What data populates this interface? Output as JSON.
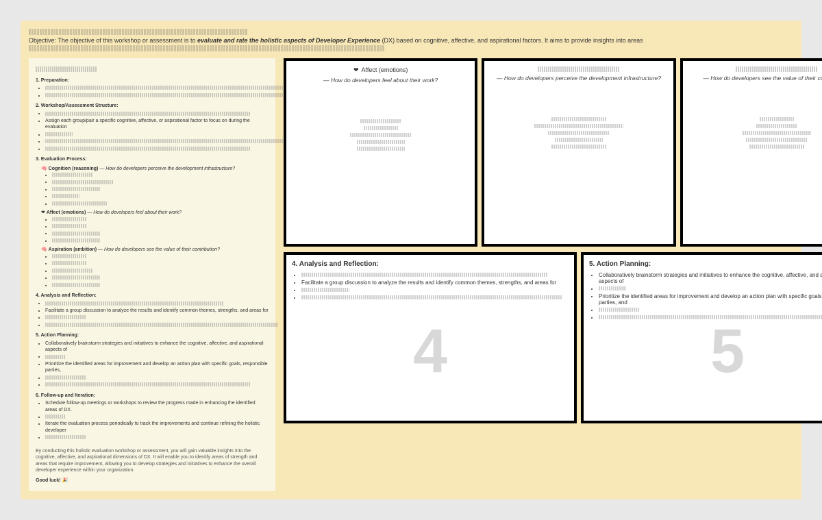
{
  "colors": {
    "page_bg": "#e8e8e8",
    "frame_bg": "#f8e8b8",
    "left_panel_bg": "#faf6e4",
    "card_bg": "#ffffff",
    "card_border": "#000000",
    "big_num": "#d8d8d8",
    "text": "#333333"
  },
  "header": {
    "objective_prefix": "Objective: The objective of this workshop or assessment is to ",
    "objective_bold": "evaluate and rate the holistic aspects of Developer Experience",
    "objective_suffix": " (DX) based on cognitive, affective, and aspirational factors. It aims to provide insights into areas"
  },
  "left": {
    "title_placeholder": "XXXXXXXXXXXXXXXX",
    "steps": [
      {
        "num": "1",
        "title": "Preparation:",
        "bullets_obscured": [
          380,
          360
        ]
      },
      {
        "num": "2",
        "title": "Workshop/Assessment Structure:",
        "bullets": [
          {
            "obscured": 300
          },
          {
            "text": "Assign each group/pair a specific cognitive, affective, or aspirational factor to focus on during the evaluation"
          },
          {
            "obscured": 40
          },
          {
            "obscured": 380
          },
          {
            "obscured": 300
          }
        ]
      },
      {
        "num": "3",
        "title": "Evaluation Process:",
        "categories": [
          {
            "label": "Cognition (reasoning)",
            "q": "How do developers perceive the development infrastructure?",
            "aspects_obscured": [
              60,
              90,
              70,
              40,
              80
            ]
          },
          {
            "label": "Affect (emotions)",
            "icon": "heart",
            "q": "How do developers feel about their work?",
            "aspects_obscured": [
              50,
              50,
              70,
              70
            ]
          },
          {
            "label": "Aspiration (ambition)",
            "q": "How do developers see the value of their contribution?",
            "aspects_obscured": [
              50,
              50,
              60,
              70,
              70
            ]
          }
        ]
      },
      {
        "num": "4",
        "title": "Analysis and Reflection:",
        "bullets": [
          {
            "obscured": 260
          },
          {
            "text": "Facilitate a group discussion to analyze the results and identify common themes, strengths, and areas for"
          },
          {
            "obscured": 60
          },
          {
            "obscured": 340
          }
        ]
      },
      {
        "num": "5",
        "title": "Action Planning:",
        "bullets": [
          {
            "text": "Collaboratively brainstorm strategies and initiatives to enhance the cognitive, affective, and aspirational aspects of"
          },
          {
            "obscured": 30
          },
          {
            "text": "Prioritize the identified areas for improvement and develop an action plan with specific goals, responsible parties,"
          },
          {
            "obscured": 60
          },
          {
            "obscured": 300
          }
        ]
      },
      {
        "num": "6",
        "title": "Follow-up and Iteration:",
        "bullets": [
          {
            "text": "Schedule follow-up meetings or workshops to review the progress made in enhancing the identified areas of DX."
          },
          {
            "obscured": 30
          },
          {
            "text": "Iterate the evaluation process periodically to track the improvements and continue refining the holistic developer"
          },
          {
            "obscured": 60
          }
        ]
      }
    ],
    "footnote": "By conducting this holistic evaluation workshop or assessment, you will gain valuable insights into the cognitive, affective, and aspirational dimensions of DX. It will enable you to identify areas of strength and areas that require improvement, allowing you to develop strategies and initiatives to enhance the overall developer experience within your organization.",
    "goodluck": "Good luck! 🎉"
  },
  "cards_top": [
    {
      "icon": "heart",
      "title": "Affect (emotions)",
      "subtitle": "How do developers feel about their work?",
      "aspects_obscured": [
        60,
        50,
        90,
        70,
        70
      ]
    },
    {
      "title_placeholder": true,
      "subtitle": "How do developers perceive the development infrastructure?",
      "aspects_obscured": [
        80,
        130,
        90,
        70,
        80
      ]
    },
    {
      "title_placeholder": true,
      "subtitle": "How do developers see the value of their contribution?",
      "aspects_obscured": [
        50,
        60,
        100,
        90,
        80
      ]
    }
  ],
  "cards_bottom": [
    {
      "big_num": "4",
      "title": "4. Analysis and Reflection:",
      "bullets": [
        {
          "obscured": 360
        },
        {
          "text": "Facilitate a group discussion to analyze the results and identify common themes, strengths, and areas for"
        },
        {
          "obscured": 70
        },
        {
          "obscured": 380
        }
      ]
    },
    {
      "big_num": "5",
      "title": "5. Action Planning:",
      "bullets": [
        {
          "text": "Collaboratively brainstorm strategies and initiatives to enhance the cognitive, affective, and aspirational aspects of"
        },
        {
          "obscured": 40
        },
        {
          "text": "Prioritize the identified areas for improvement and develop an action plan with specific goals, responsible parties, and"
        },
        {
          "obscured": 60
        },
        {
          "obscured": 400
        }
      ]
    }
  ]
}
